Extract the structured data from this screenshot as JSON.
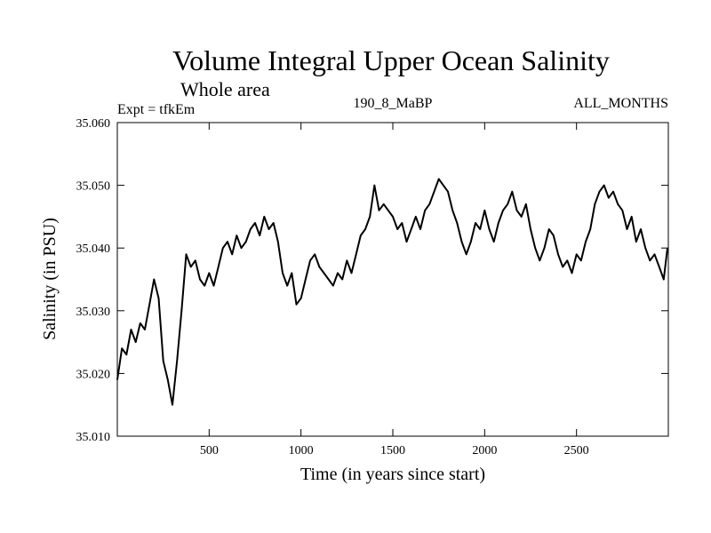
{
  "header": {
    "title": "Volume Integral Upper Ocean Salinity",
    "subtitle": "Whole area",
    "expt": "Expt = tfkEm",
    "run_id": "190_8_MaBP",
    "months": "ALL_MONTHS"
  },
  "chart_data": {
    "type": "line",
    "title": "Volume Integral Upper Ocean Salinity",
    "subtitle": "Whole area",
    "xlabel": "Time (in years since start)",
    "ylabel": "Salinity (in PSU)",
    "xlim": [
      0,
      3000
    ],
    "ylim": [
      35.01,
      35.06
    ],
    "x_ticks": [
      500,
      1000,
      1500,
      2000,
      2500
    ],
    "y_ticks": [
      "35.010",
      "35.020",
      "35.030",
      "35.040",
      "35.050",
      "35.060"
    ],
    "grid": false,
    "color": "#000000",
    "series": [
      {
        "x": [
          0,
          25,
          50,
          75,
          100,
          125,
          150,
          175,
          200,
          225,
          250,
          275,
          300,
          325,
          350,
          375,
          400,
          425,
          450,
          475,
          500,
          525,
          550,
          575,
          600,
          625,
          650,
          675,
          700,
          725,
          750,
          775,
          800,
          825,
          850,
          875,
          900,
          925,
          950,
          975,
          1000,
          1025,
          1050,
          1075,
          1100,
          1125,
          1150,
          1175,
          1200,
          1225,
          1250,
          1275,
          1300,
          1325,
          1350,
          1375,
          1400,
          1425,
          1450,
          1475,
          1500,
          1525,
          1550,
          1575,
          1600,
          1625,
          1650,
          1675,
          1700,
          1725,
          1750,
          1775,
          1800,
          1825,
          1850,
          1875,
          1900,
          1925,
          1950,
          1975,
          2000,
          2025,
          2050,
          2075,
          2100,
          2125,
          2150,
          2175,
          2200,
          2225,
          2250,
          2275,
          2300,
          2325,
          2350,
          2375,
          2400,
          2425,
          2450,
          2475,
          2500,
          2525,
          2550,
          2575,
          2600,
          2625,
          2650,
          2675,
          2700,
          2725,
          2750,
          2775,
          2800,
          2825,
          2850,
          2875,
          2900,
          2925,
          2950,
          2975,
          2995
        ],
        "y": [
          35.019,
          35.024,
          35.023,
          35.027,
          35.025,
          35.028,
          35.027,
          35.031,
          35.035,
          35.032,
          35.022,
          35.019,
          35.015,
          35.022,
          35.03,
          35.039,
          35.037,
          35.038,
          35.035,
          35.034,
          35.036,
          35.034,
          35.037,
          35.04,
          35.041,
          35.039,
          35.042,
          35.04,
          35.041,
          35.043,
          35.044,
          35.042,
          35.045,
          35.043,
          35.044,
          35.041,
          35.036,
          35.034,
          35.036,
          35.031,
          35.032,
          35.035,
          35.038,
          35.039,
          35.037,
          35.036,
          35.035,
          35.034,
          35.036,
          35.035,
          35.038,
          35.036,
          35.039,
          35.042,
          35.043,
          35.045,
          35.05,
          35.046,
          35.047,
          35.046,
          35.045,
          35.043,
          35.044,
          35.041,
          35.043,
          35.045,
          35.043,
          35.046,
          35.047,
          35.049,
          35.051,
          35.05,
          35.049,
          35.046,
          35.044,
          35.041,
          35.039,
          35.041,
          35.044,
          35.043,
          35.046,
          35.043,
          35.041,
          35.044,
          35.046,
          35.047,
          35.049,
          35.046,
          35.045,
          35.047,
          35.043,
          35.04,
          35.038,
          35.04,
          35.043,
          35.042,
          35.039,
          35.037,
          35.038,
          35.036,
          35.039,
          35.038,
          35.041,
          35.043,
          35.047,
          35.049,
          35.05,
          35.048,
          35.049,
          35.047,
          35.046,
          35.043,
          35.045,
          35.041,
          35.043,
          35.04,
          35.038,
          35.039,
          35.037,
          35.035,
          35.04
        ]
      }
    ]
  }
}
